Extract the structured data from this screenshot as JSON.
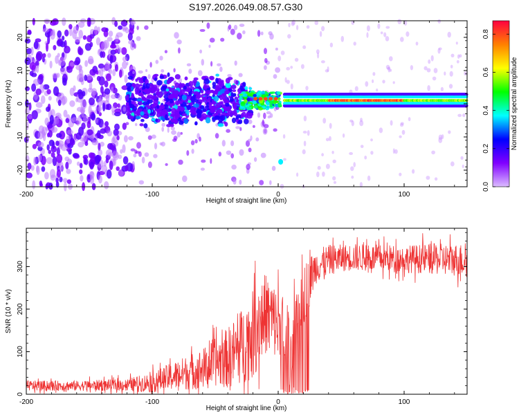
{
  "title": "S197.2026.049.08.57.G30",
  "chart_data": [
    {
      "type": "heatmap",
      "xlabel": "Height of straight line (km)",
      "ylabel": "Frequency (Hz)",
      "xlim": [
        -200,
        150
      ],
      "ylim": [
        -25,
        25
      ],
      "x_ticks": [
        -200,
        -100,
        0,
        100
      ],
      "y_ticks": [
        -20,
        -10,
        0,
        10,
        20
      ],
      "colorbar": {
        "label": "Normalized spectral amplitude",
        "range": [
          0.0,
          0.87
        ],
        "ticks": [
          0.0,
          0.2,
          0.4,
          0.6,
          0.8
        ],
        "colormap": [
          "#dcbcff",
          "#8000ff",
          "#0000ff",
          "#00ffff",
          "#00ff00",
          "#ffff00",
          "#ff8000",
          "#ff0040"
        ]
      },
      "features": {
        "noise_region_x": [
          -200,
          -120
        ],
        "dense_band_x": [
          -120,
          -25
        ],
        "signal_band_center_hz": 1,
        "signal_band_start_x": 2,
        "signal_band_end_x": 150,
        "peak_amplitude_x": [
          40,
          100
        ],
        "isolated_blob": {
          "x": 2,
          "freq_range": [
            -22,
            -12
          ]
        }
      }
    },
    {
      "type": "line",
      "xlabel": "Height of straight line (km)",
      "ylabel": "SNR (10 * v/v)",
      "xlim": [
        -200,
        150
      ],
      "ylim": [
        0,
        390
      ],
      "x_ticks": [
        -200,
        -100,
        0,
        100
      ],
      "y_ticks": [
        0,
        100,
        200,
        300
      ],
      "series": [
        {
          "name": "SNR",
          "color": "#ee3333",
          "envelope_x": [
            -200,
            -160,
            -120,
            -100,
            -80,
            -60,
            -50,
            -40,
            -30,
            -20,
            -15,
            -10,
            -5,
            0,
            5,
            10,
            15,
            20,
            25,
            30,
            40,
            50,
            60,
            80,
            100,
            120,
            150
          ],
          "envelope_mean": [
            20,
            20,
            22,
            28,
            45,
            60,
            75,
            85,
            110,
            140,
            170,
            190,
            180,
            160,
            140,
            120,
            160,
            220,
            270,
            300,
            315,
            320,
            322,
            320,
            318,
            318,
            315
          ],
          "envelope_amp": [
            15,
            15,
            18,
            30,
            45,
            60,
            70,
            90,
            110,
            130,
            130,
            120,
            110,
            110,
            110,
            90,
            110,
            100,
            70,
            50,
            45,
            40,
            40,
            40,
            40,
            45,
            50
          ]
        }
      ]
    }
  ]
}
